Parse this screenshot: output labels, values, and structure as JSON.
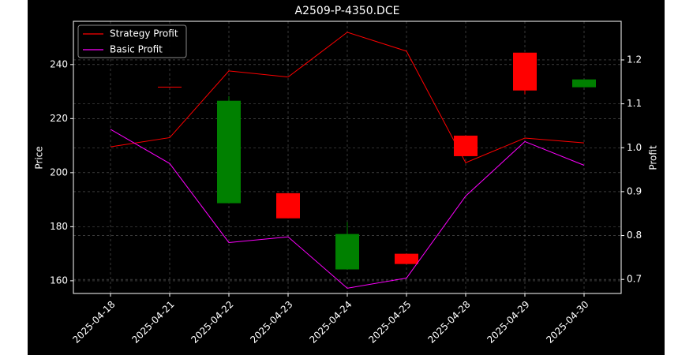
{
  "chart_data": {
    "type": "candlestick",
    "title": "A2509-P-4350.DCE",
    "y_label": "Price",
    "y2_label": "Profit",
    "categories": [
      "2025-04-18",
      "2025-04-21",
      "2025-04-22",
      "2025-04-23",
      "2025-04-24",
      "2025-04-25",
      "2025-04-28",
      "2025-04-29",
      "2025-04-30"
    ],
    "candles": {
      "open": [
        null,
        231.8,
        188.7,
        192.4,
        164.2,
        170.0,
        213.7,
        244.4,
        231.6
      ],
      "high": [
        null,
        231.8,
        228.3,
        192.4,
        181.7,
        170.0,
        213.7,
        244.4,
        234.5
      ],
      "low": [
        null,
        231.8,
        188.7,
        183.1,
        164.2,
        166.2,
        206.1,
        229.0,
        231.6
      ],
      "close": [
        null,
        231.8,
        226.6,
        183.1,
        177.3,
        166.2,
        206.1,
        230.4,
        234.5
      ]
    },
    "up_color": "#008000",
    "down_color": "#ff0000",
    "series": [
      {
        "name": "Strategy Profit",
        "color": "#ff0000",
        "axis": "y2",
        "values": [
          1.002,
          1.023,
          1.175,
          1.161,
          1.263,
          1.22,
          0.966,
          1.022,
          1.011
        ]
      },
      {
        "name": "Basic Profit",
        "color": "#ff00ff",
        "axis": "y2",
        "values": [
          1.042,
          0.964,
          0.784,
          0.797,
          0.68,
          0.703,
          0.89,
          1.014,
          0.96
        ]
      }
    ],
    "ylim": [
      155.3,
      256
    ],
    "yticks": [
      160,
      180,
      200,
      220,
      240
    ],
    "y2lim": [
      0.668,
      1.288
    ],
    "y2ticks": [
      0.7,
      0.8,
      0.9,
      {
        "value": 1.0,
        "label": "1.0"
      },
      1.1,
      1.2
    ],
    "grid": true,
    "legend": "upper-left"
  }
}
